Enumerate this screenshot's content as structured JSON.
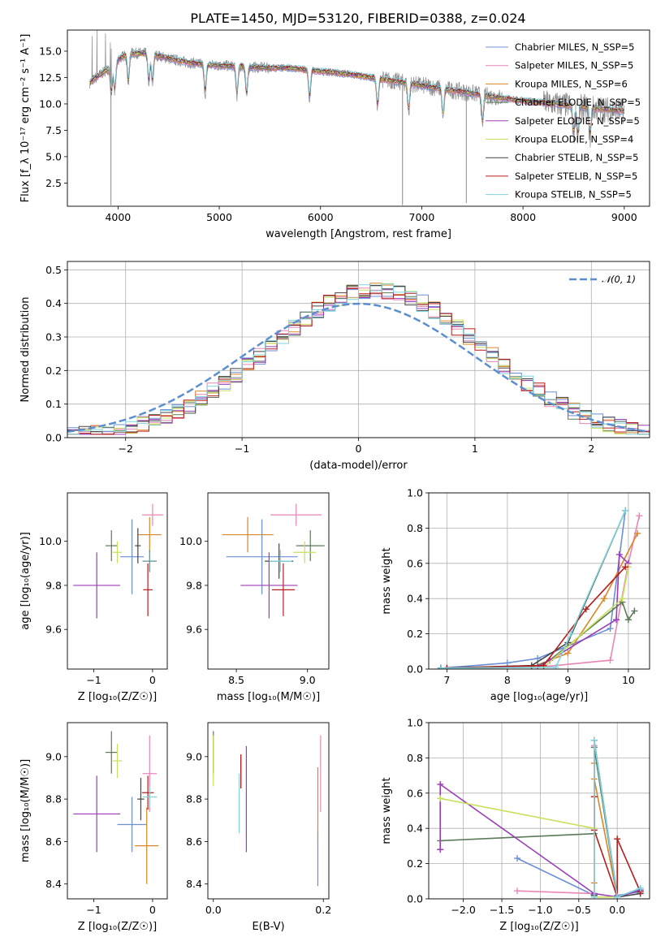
{
  "figure": {
    "title": "PLATE=1450, MJD=53120, FIBERID=0388, z=0.024"
  },
  "chart_data": [
    {
      "type": "line",
      "id": "spectrum",
      "xlabel": "wavelength [Angstrom, rest frame]",
      "ylabel": "Flux [f_λ 10⁻¹⁷ erg cm⁻² s⁻¹ A⁻¹]",
      "xlim": [
        3500,
        9250
      ],
      "ylim": [
        0.3,
        17
      ],
      "xticks": [
        4000,
        5000,
        6000,
        7000,
        8000,
        9000
      ],
      "yticks": [
        2.5,
        5.0,
        7.5,
        10.0,
        12.5,
        15.0
      ],
      "legend_position": "top-right",
      "series": [
        {
          "name": "Chabrier MILES, N_SSP=5",
          "color": "#6b8fd6"
        },
        {
          "name": "Salpeter MILES, N_SSP=5",
          "color": "#e986b7"
        },
        {
          "name": "Kroupa MILES, N_SSP=6",
          "color": "#d9862a"
        },
        {
          "name": "Chabrier ELODIE, N_SSP=5",
          "color": "#5d7a5a"
        },
        {
          "name": "Salpeter ELODIE, N_SSP=5",
          "color": "#9b3db8"
        },
        {
          "name": "Kroupa ELODIE, N_SSP=4",
          "color": "#c8e05c"
        },
        {
          "name": "Chabrier STELIB, N_SSP=5",
          "color": "#444444"
        },
        {
          "name": "Salpeter STELIB, N_SSP=5",
          "color": "#b81c1c"
        },
        {
          "name": "Kroupa STELIB, N_SSP=5",
          "color": "#7fd3dc"
        }
      ],
      "data_color": "#8a8a8a",
      "continuum": {
        "x": [
          3720,
          3800,
          3900,
          4000,
          4100,
          4300,
          4500,
          4700,
          4900,
          5100,
          5300,
          5500,
          5700,
          5900,
          6100,
          6300,
          6500,
          6700,
          6900,
          7100,
          7300,
          7500,
          7700,
          7900,
          8100,
          8300,
          8500,
          8700,
          8900,
          9000
        ],
        "y": [
          12.0,
          12.6,
          13.3,
          14.2,
          14.8,
          14.8,
          14.3,
          13.9,
          13.7,
          13.6,
          13.5,
          13.4,
          13.4,
          13.2,
          13.0,
          12.8,
          12.5,
          12.2,
          11.9,
          11.6,
          11.3,
          11.0,
          10.7,
          10.4,
          10.2,
          10.0,
          9.8,
          9.6,
          9.4,
          9.3
        ]
      },
      "absorption_lines": [
        3934,
        3968,
        4102,
        4304,
        4340,
        4861,
        5175,
        5270,
        5892,
        6563,
        6870,
        7210,
        7600,
        8500,
        8542,
        8662
      ],
      "spikes_down": [
        {
          "x": 3930,
          "y": 0.4
        },
        {
          "x": 6810,
          "y": 0.4
        },
        {
          "x": 7440,
          "y": 0.6
        }
      ]
    },
    {
      "type": "histogram",
      "id": "residuals",
      "xlabel": "(data-model)/error",
      "ylabel": "Normed distribution",
      "xlim": [
        -2.5,
        2.5
      ],
      "ylim": [
        0,
        0.525
      ],
      "xticks": [
        -2,
        -1,
        0,
        1,
        2
      ],
      "yticks": [
        0.0,
        0.1,
        0.2,
        0.3,
        0.4,
        0.5
      ],
      "grid": true,
      "legend_position": "top-right",
      "reference_curve": {
        "name": "𝒩(0, 1)",
        "color": "#5b8fd0",
        "style": "dashed"
      },
      "bin_width": 0.1
    },
    {
      "type": "scatter",
      "id": "age-vs-Z",
      "xlabel": "Z [log₁₀(Z/Z☉)]",
      "ylabel": "age  [log₁₀(age/yr)]",
      "xlim": [
        -1.45,
        0.25
      ],
      "ylim": [
        9.42,
        10.22
      ],
      "xticks": [
        -1,
        0
      ],
      "yticks": [
        9.6,
        9.8,
        10.0
      ],
      "points": [
        {
          "x": -0.35,
          "y": 9.93,
          "xerr": 0.2,
          "yerr": 0.17,
          "color": "#6b8fd6"
        },
        {
          "x": 0.0,
          "y": 10.12,
          "xerr": 0.18,
          "yerr": 0.05,
          "color": "#e986b7"
        },
        {
          "x": -0.05,
          "y": 10.03,
          "xerr": 0.2,
          "yerr": 0.08,
          "color": "#d9862a"
        },
        {
          "x": -0.7,
          "y": 9.98,
          "xerr": 0.1,
          "yerr": 0.07,
          "color": "#5d7a5a"
        },
        {
          "x": -0.95,
          "y": 9.8,
          "xerr": 0.4,
          "yerr": 0.15,
          "color": "#9b3db8"
        },
        {
          "x": -0.6,
          "y": 9.95,
          "xerr": 0.08,
          "yerr": 0.05,
          "color": "#c8e05c"
        },
        {
          "x": -0.25,
          "y": 9.98,
          "xerr": 0.05,
          "yerr": 0.08,
          "color": "#444444"
        },
        {
          "x": -0.08,
          "y": 9.78,
          "xerr": 0.08,
          "yerr": 0.12,
          "color": "#b81c1c"
        },
        {
          "x": -0.05,
          "y": 9.91,
          "xerr": 0.12,
          "yerr": 0.05,
          "color": "#5b8f8a"
        }
      ]
    },
    {
      "type": "scatter",
      "id": "age-vs-mass",
      "xlabel": "mass [log₁₀(M/M☉)]",
      "ylabel": "",
      "xlim": [
        8.3,
        9.15
      ],
      "ylim": [
        9.42,
        10.22
      ],
      "xticks": [
        8.5,
        9.0
      ],
      "yticks": [
        9.6,
        9.8,
        10.0
      ],
      "points": [
        {
          "x": 8.68,
          "y": 9.93,
          "xerr": 0.25,
          "yerr": 0.17,
          "color": "#6b8fd6"
        },
        {
          "x": 8.92,
          "y": 10.12,
          "xerr": 0.18,
          "yerr": 0.05,
          "color": "#e986b7"
        },
        {
          "x": 8.58,
          "y": 10.03,
          "xerr": 0.18,
          "yerr": 0.08,
          "color": "#d9862a"
        },
        {
          "x": 9.02,
          "y": 9.98,
          "xerr": 0.1,
          "yerr": 0.07,
          "color": "#5d7a5a"
        },
        {
          "x": 8.73,
          "y": 9.8,
          "xerr": 0.2,
          "yerr": 0.15,
          "color": "#9b3db8"
        },
        {
          "x": 8.98,
          "y": 9.95,
          "xerr": 0.08,
          "yerr": 0.05,
          "color": "#c8e05c"
        },
        {
          "x": 8.8,
          "y": 9.91,
          "xerr": 0.1,
          "yerr": 0.08,
          "color": "#444444"
        },
        {
          "x": 8.83,
          "y": 9.78,
          "xerr": 0.08,
          "yerr": 0.12,
          "color": "#b81c1c"
        },
        {
          "x": 8.81,
          "y": 9.91,
          "xerr": 0.08,
          "yerr": 0.05,
          "color": "#7fd3dc"
        }
      ]
    },
    {
      "type": "line",
      "id": "mass-weight-vs-age",
      "xlabel": "age  [log₁₀(age/yr)]",
      "ylabel": "mass weight",
      "xlim": [
        6.7,
        10.35
      ],
      "ylim": [
        0,
        1.0
      ],
      "xticks": [
        7,
        8,
        9,
        10
      ],
      "yticks": [
        0.0,
        0.2,
        0.4,
        0.6,
        0.8,
        1.0
      ],
      "grid": true,
      "series": [
        {
          "color": "#6b8fd6",
          "x": [
            6.9,
            8.0,
            8.5,
            9.7,
            9.95
          ],
          "y": [
            0.005,
            0.035,
            0.06,
            0.23,
            0.9
          ]
        },
        {
          "color": "#e986b7",
          "x": [
            7.0,
            8.5,
            9.7,
            10.0,
            10.18
          ],
          "y": [
            0.005,
            0.01,
            0.05,
            0.6,
            0.87
          ]
        },
        {
          "color": "#d9862a",
          "x": [
            7.0,
            8.4,
            9.0,
            9.6,
            10.15
          ],
          "y": [
            0.005,
            0.01,
            0.09,
            0.4,
            0.77
          ]
        },
        {
          "color": "#5d7a5a",
          "x": [
            6.9,
            8.5,
            8.7,
            9.9,
            10.0,
            10.1
          ],
          "y": [
            0.005,
            0.02,
            0.05,
            0.38,
            0.28,
            0.33
          ]
        },
        {
          "color": "#9b3db8",
          "x": [
            6.9,
            8.5,
            8.7,
            9.8,
            9.85,
            10.0
          ],
          "y": [
            0.005,
            0.01,
            0.05,
            0.28,
            0.65,
            0.6
          ]
        },
        {
          "color": "#c8e05c",
          "x": [
            7.0,
            8.6,
            9.9,
            10.0
          ],
          "y": [
            0.005,
            0.01,
            0.4,
            0.58
          ]
        },
        {
          "color": "#444444",
          "x": [
            6.9,
            8.4,
            9.0,
            9.95
          ],
          "y": [
            0.005,
            0.02,
            0.15,
            0.9
          ]
        },
        {
          "color": "#b81c1c",
          "x": [
            7.0,
            8.6,
            9.3,
            9.95
          ],
          "y": [
            0.005,
            0.02,
            0.34,
            0.58
          ]
        },
        {
          "color": "#7fd3dc",
          "x": [
            6.9,
            8.8,
            9.05,
            9.95
          ],
          "y": [
            0.005,
            0.01,
            0.2,
            0.9
          ]
        }
      ]
    },
    {
      "type": "scatter",
      "id": "mass-vs-Z",
      "xlabel": "Z [log₁₀(Z/Z☉)]",
      "ylabel": "mass [log₁₀(M/M☉)]",
      "xlim": [
        -1.45,
        0.25
      ],
      "ylim": [
        8.33,
        9.16
      ],
      "xticks": [
        -1,
        0
      ],
      "yticks": [
        8.4,
        8.6,
        8.8,
        9.0
      ],
      "points": [
        {
          "x": -0.35,
          "y": 8.68,
          "xerr": 0.25,
          "yerr": 0.13,
          "color": "#6b8fd6"
        },
        {
          "x": -0.05,
          "y": 8.92,
          "xerr": 0.12,
          "yerr": 0.18,
          "color": "#e986b7"
        },
        {
          "x": -0.1,
          "y": 8.58,
          "xerr": 0.2,
          "yerr": 0.18,
          "color": "#d9862a"
        },
        {
          "x": -0.7,
          "y": 9.02,
          "xerr": 0.1,
          "yerr": 0.1,
          "color": "#5d7a5a"
        },
        {
          "x": -0.95,
          "y": 8.73,
          "xerr": 0.4,
          "yerr": 0.18,
          "color": "#9b3db8"
        },
        {
          "x": -0.6,
          "y": 8.98,
          "xerr": 0.08,
          "yerr": 0.08,
          "color": "#c8e05c"
        },
        {
          "x": -0.2,
          "y": 8.8,
          "xerr": 0.06,
          "yerr": 0.1,
          "color": "#444444"
        },
        {
          "x": -0.08,
          "y": 8.83,
          "xerr": 0.1,
          "yerr": 0.08,
          "color": "#b81c1c"
        },
        {
          "x": -0.05,
          "y": 8.81,
          "xerr": 0.12,
          "yerr": 0.05,
          "color": "#7fd3dc"
        }
      ]
    },
    {
      "type": "scatter",
      "id": "mass-vs-ebv",
      "xlabel": "E(B-V)",
      "ylabel": "",
      "xlim": [
        -0.01,
        0.21
      ],
      "ylim": [
        8.33,
        9.16
      ],
      "xticks": [
        0.0,
        0.2
      ],
      "yticks": [
        8.4,
        8.6,
        8.8,
        9.0
      ],
      "points": [
        {
          "x": 0.19,
          "y": 8.52,
          "yerr": 0.13,
          "color": "#6b8fd6"
        },
        {
          "x": 0.195,
          "y": 8.92,
          "yerr": 0.18,
          "color": "#e986b7"
        },
        {
          "x": 0.19,
          "y": 8.77,
          "yerr": 0.18,
          "color": "#d9862a"
        },
        {
          "x": 0.0,
          "y": 9.02,
          "yerr": 0.1,
          "color": "#5d7a5a"
        },
        {
          "x": 0.06,
          "y": 8.8,
          "yerr": 0.25,
          "color": "#9b3db8"
        },
        {
          "x": 0.0,
          "y": 8.98,
          "yerr": 0.12,
          "color": "#c8e05c"
        },
        {
          "x": 0.05,
          "y": 8.93,
          "yerr": 0.08,
          "color": "#444444"
        },
        {
          "x": 0.05,
          "y": 8.93,
          "yerr": 0.08,
          "color": "#b81c1c"
        },
        {
          "x": 0.047,
          "y": 8.78,
          "yerr": 0.14,
          "color": "#7fd3dc"
        }
      ]
    },
    {
      "type": "line",
      "id": "mass-weight-vs-Z",
      "xlabel": "Z [log₁₀(Z/Z☉)]",
      "ylabel": "mass weight",
      "xlim": [
        -2.45,
        0.42
      ],
      "ylim": [
        0,
        1.0
      ],
      "xticks": [
        -2.0,
        -1.5,
        -1.0,
        -0.5,
        0.0
      ],
      "yticks": [
        0.0,
        0.2,
        0.4,
        0.6,
        0.8,
        1.0
      ],
      "grid": true,
      "series": [
        {
          "color": "#6b8fd6",
          "x": [
            -1.3,
            -0.3,
            -0.3,
            0.0,
            0.3
          ],
          "y": [
            0.23,
            0.02,
            0.9,
            0.02,
            0.04
          ]
        },
        {
          "color": "#e986b7",
          "x": [
            -1.3,
            -0.3,
            -0.3,
            0.0,
            0.3
          ],
          "y": [
            0.045,
            0.03,
            0.87,
            0.01,
            0.06
          ]
        },
        {
          "color": "#d9862a",
          "x": [
            -0.3,
            -0.3,
            -0.3,
            0.0,
            0.3
          ],
          "y": [
            0.09,
            0.77,
            0.68,
            0.01,
            0.05
          ]
        },
        {
          "color": "#5d7a5a",
          "x": [
            -2.3,
            -0.3,
            -0.3,
            0.0,
            0.3
          ],
          "y": [
            0.33,
            0.37,
            0.86,
            0.01,
            0.05
          ]
        },
        {
          "color": "#9b3db8",
          "x": [
            -2.3,
            -2.3,
            -0.3,
            0.0,
            0.3
          ],
          "y": [
            0.28,
            0.65,
            0.03,
            0.01,
            0.05
          ]
        },
        {
          "color": "#c8e05c",
          "x": [
            -2.3,
            -0.3,
            -0.3,
            0.0
          ],
          "y": [
            0.57,
            0.4,
            0.01,
            0.01
          ]
        },
        {
          "color": "#444444",
          "x": [
            -0.3,
            -0.3,
            0.0,
            0.3
          ],
          "y": [
            0.02,
            0.9,
            0.01,
            0.03
          ]
        },
        {
          "color": "#b81c1c",
          "x": [
            -0.3,
            -0.3,
            0.0,
            0.0,
            0.3
          ],
          "y": [
            0.58,
            0.39,
            0.01,
            0.34,
            0.04
          ]
        },
        {
          "color": "#7fd3dc",
          "x": [
            -0.3,
            -0.3,
            0.0,
            0.3
          ],
          "y": [
            0.01,
            0.9,
            0.01,
            0.06
          ]
        }
      ]
    }
  ]
}
